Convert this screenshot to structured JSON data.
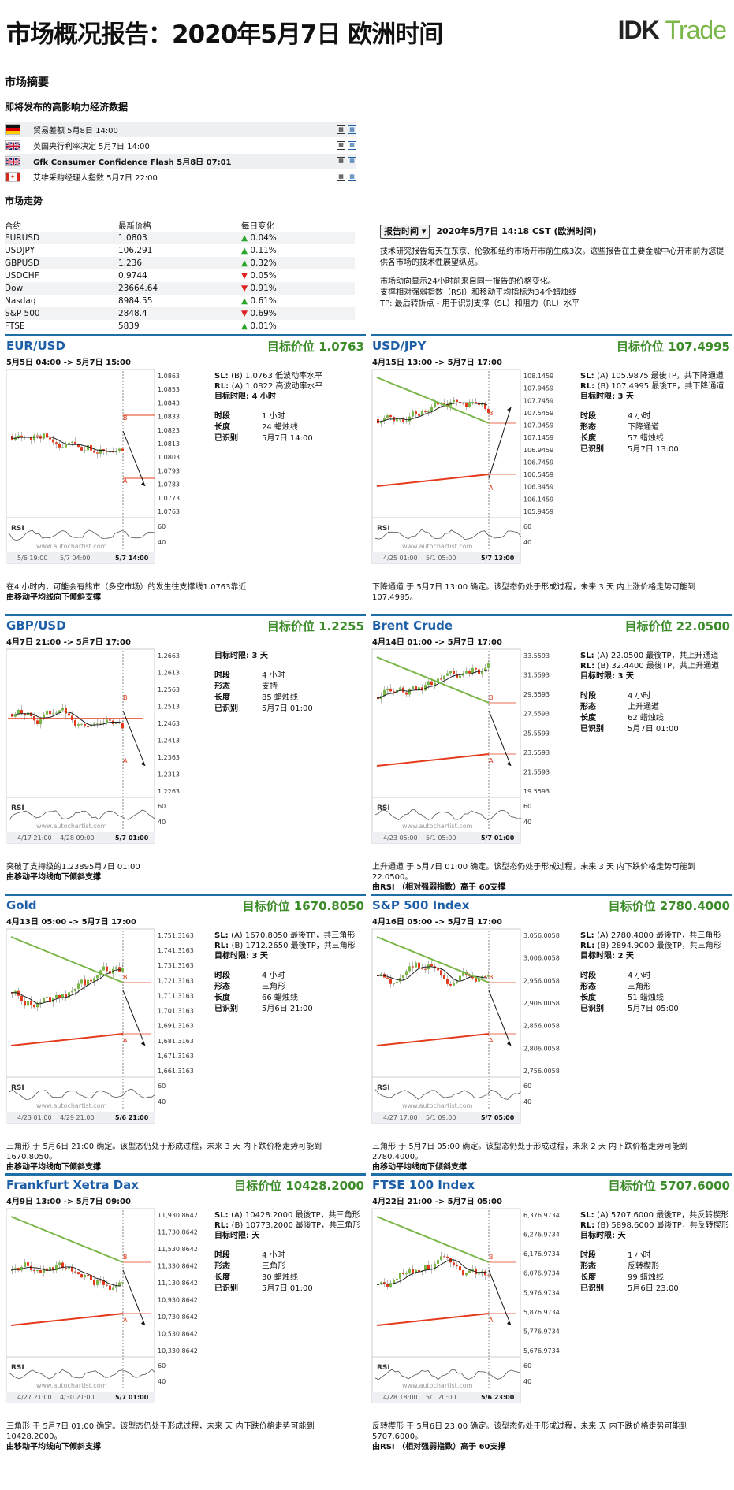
{
  "header": {
    "title": "市场概况报告：2020年5月7日 欧洲时间",
    "logo_a": "IDK",
    "logo_b": "Trade"
  },
  "summary": {
    "title": "市场摘要",
    "events_title": "即将发布的高影响力经济数据",
    "events": [
      {
        "flag": "de",
        "text": "贸易差额 5月8日 14:00"
      },
      {
        "flag": "gb",
        "text": "英国央行利率决定 5月7日 14:00"
      },
      {
        "flag": "gb",
        "text": "Gfk Consumer Confidence Flash 5月8日 07:01"
      },
      {
        "flag": "ca",
        "text": "艾维采购经理人指数 5月7日 22:00"
      }
    ]
  },
  "trend": {
    "title": "市场走势",
    "headers": [
      "合约",
      "最新价格",
      "每日变化"
    ],
    "rows": [
      {
        "name": "EURUSD",
        "price": "1.0803",
        "dir": "up",
        "chg": "0.04%"
      },
      {
        "name": "USDJPY",
        "price": "106.291",
        "dir": "up",
        "chg": "0.11%"
      },
      {
        "name": "GBPUSD",
        "price": "1.236",
        "dir": "up",
        "chg": "0.32%"
      },
      {
        "name": "USDCHF",
        "price": "0.9744",
        "dir": "dn",
        "chg": "0.05%"
      },
      {
        "name": "Dow",
        "price": "23664.64",
        "dir": "dn",
        "chg": "0.91%"
      },
      {
        "name": "Nasdaq",
        "price": "8984.55",
        "dir": "up",
        "chg": "0.61%"
      },
      {
        "name": "S&P 500",
        "price": "2848.4",
        "dir": "dn",
        "chg": "0.69%"
      },
      {
        "name": "FTSE",
        "price": "5839",
        "dir": "up",
        "chg": "0.01%"
      }
    ]
  },
  "report": {
    "button": "报告时间",
    "time": "2020年5月7日 14:18 CST (欧洲时间)",
    "p1": "技术研究报告每天在东京、伦敦和纽约市场开市前生成3次。这些报告在主要金融中心开市前为您提供各市场的技术性展望纵览。",
    "p2": "市场动向显示24小时前来自同一报告的价格变化。",
    "p3": "支撑相对强弱指数（RSI）和移动平均指标为34个蜡烛线",
    "p4": "TP: 最后转折点 - 用于识别支撑（SL）和阻力（RL）水平"
  },
  "panels": [
    {
      "name": "EUR/USD",
      "target": "目标价位 1.0763",
      "range": "5月5日 04:00 -> 5月7日 15:00",
      "sl": "(B) 1.0763 低波动率水平",
      "rl": "(A) 1.0822 高波动率水平",
      "goal": "目标时限: 4 小时",
      "rows": [
        [
          "时段",
          "1 小时"
        ],
        [
          "长度",
          "24 蜡烛线"
        ],
        [
          "已识别",
          "5月7日 14:00"
        ]
      ],
      "yticks": [
        "1.0863",
        "1.0853",
        "1.0843",
        "1.0833",
        "1.0823",
        "1.0813",
        "1.0803",
        "1.0793",
        "1.0783",
        "1.0773",
        "1.0763"
      ],
      "xticks": [
        "5/6 19:00",
        "5/7 04:00",
        "5/7 14:00"
      ],
      "desc": "在4 小时内，可能会有熊市（多空市场）的发生往支撑线1.0763靠近",
      "desc2": "由移动平均线向下倾斜支撑",
      "type": "level"
    },
    {
      "name": "USD/JPY",
      "target": "目标价位 107.4995",
      "range": "4月15日 13:00 -> 5月7日 17:00",
      "sl": "(A) 105.9875 最後TP，共下降通道",
      "rl": "(B) 107.4995 最後TP，共下降通道",
      "goal": "目标时限: 3 天",
      "rows": [
        [
          "时段",
          "4 小时"
        ],
        [
          "形态",
          "下降通道"
        ],
        [
          "长度",
          "57 蜡烛线"
        ],
        [
          "已识别",
          "5月7日 13:00"
        ]
      ],
      "yticks": [
        "108.1459",
        "107.9459",
        "107.7459",
        "107.5459",
        "107.3459",
        "107.1459",
        "106.9459",
        "106.7459",
        "106.5459",
        "106.3459",
        "106.1459",
        "105.9459"
      ],
      "xticks": [
        "4/25 01:00",
        "5/1 05:00",
        "5/7 13:00"
      ],
      "desc": "下降通道 于 5月7日 13:00 确定。该型态仍处于形成过程，未来 3 天 内上涨价格走势可能到 107.4995。",
      "desc2": "",
      "type": "channel_up"
    },
    {
      "name": "GBP/USD",
      "target": "目标价位 1.2255",
      "range": "4月7日 21:00 -> 5月7日 17:00",
      "sl": "",
      "rl": "",
      "goal": "目标时限: 3 天",
      "rows": [
        [
          "时段",
          "4 小时"
        ],
        [
          "形态",
          "支持"
        ],
        [
          "长度",
          "85 蜡烛线"
        ],
        [
          "已识别",
          "5月7日 01:00"
        ]
      ],
      "yticks": [
        "1.2663",
        "1.2613",
        "1.2563",
        "1.2513",
        "1.2463",
        "1.2413",
        "1.2363",
        "1.2313",
        "1.2263"
      ],
      "xticks": [
        "4/17 21:00",
        "4/28 09:00",
        "5/7 01:00"
      ],
      "desc": "突破了支持级的1.23895月7日 01:00",
      "desc2": "由移动平均线向下倾斜支撑",
      "type": "support"
    },
    {
      "name": "Brent Crude",
      "target": "目标价位 22.0500",
      "range": "4月14日 01:00 -> 5月7日 17:00",
      "sl": "(A) 22.0500 最後TP，共上升通道",
      "rl": "(B) 32.4400 最後TP，共上升通道",
      "goal": "目标时限: 3 天",
      "rows": [
        [
          "时段",
          "4 小时"
        ],
        [
          "形态",
          "上升通道"
        ],
        [
          "长度",
          "62 蜡烛线"
        ],
        [
          "已识别",
          "5月7日 01:00"
        ]
      ],
      "yticks": [
        "33.5593",
        "31.5593",
        "29.5593",
        "27.5593",
        "25.5593",
        "23.5593",
        "21.5593",
        "19.5593"
      ],
      "xticks": [
        "4/23 05:00",
        "5/1 05:00",
        "5/7 01:00"
      ],
      "desc": "上升通道 于 5月7日 01:00 确定。该型态仍处于形成过程，未来 3 天 内下跌价格走势可能到 22.0500。",
      "desc2": "由RSI （相对强弱指数）高于 60支撑",
      "type": "channel_dn"
    },
    {
      "name": "Gold",
      "target": "目标价位 1670.8050",
      "range": "4月13日 05:00 -> 5月7日 17:00",
      "sl": "(A) 1670.8050 最後TP，共三角形",
      "rl": "(B) 1712.2650 最後TP，共三角形",
      "goal": "目标时限: 3 天",
      "rows": [
        [
          "时段",
          "4 小时"
        ],
        [
          "形态",
          "三角形"
        ],
        [
          "长度",
          "66 蜡烛线"
        ],
        [
          "已识别",
          "5月6日 21:00"
        ]
      ],
      "yticks": [
        "1,751.3163",
        "1,741.3163",
        "1,731.3163",
        "1,721.3163",
        "1,711.3163",
        "1,701.3163",
        "1,691.3163",
        "1,681.3163",
        "1,671.3163",
        "1,661.3163"
      ],
      "xticks": [
        "4/23 01:00",
        "4/29 21:00",
        "5/6 21:00"
      ],
      "desc": "三角形 于 5月6日 21:00 确定。该型态仍处于形成过程，未来 3 天 内下跌价格走势可能到 1670.8050。",
      "desc2": "由移动平均线向下倾斜支撑",
      "type": "triangle"
    },
    {
      "name": "S&P 500 Index",
      "target": "目标价位 2780.4000",
      "range": "4月16日 05:00 -> 5月7日 17:00",
      "sl": "(A) 2780.4000 最後TP，共三角形",
      "rl": "(B) 2894.9000 最後TP，共三角形",
      "goal": "目标时限: 2 天",
      "rows": [
        [
          "时段",
          "4 小时"
        ],
        [
          "形态",
          "三角形"
        ],
        [
          "长度",
          "51 蜡烛线"
        ],
        [
          "已识别",
          "5月7日 05:00"
        ]
      ],
      "yticks": [
        "3,056.0058",
        "3,006.0058",
        "2,956.0058",
        "2,906.0058",
        "2,856.0058",
        "2,806.0058",
        "2,756.0058"
      ],
      "xticks": [
        "4/27 17:00",
        "5/1 09:00",
        "5/7 05:00"
      ],
      "desc": "三角形 于 5月7日 05:00 确定。该型态仍处于形成过程，未来 2 天 内下跌价格走势可能到 2780.4000。",
      "desc2": "由移动平均线向下倾斜支撑",
      "type": "triangle"
    },
    {
      "name": "Frankfurt Xetra Dax",
      "target": "目标价位 10428.2000",
      "range": "4月9日 13:00 -> 5月7日 09:00",
      "sl": "(A) 10428.2000 最後TP，共三角形",
      "rl": "(B) 10773.2000 最後TP，共三角形",
      "goal": "目标时限: 天",
      "rows": [
        [
          "时段",
          "4 小时"
        ],
        [
          "形态",
          "三角形"
        ],
        [
          "长度",
          "30 蜡烛线"
        ],
        [
          "已识别",
          "5月7日 01:00"
        ]
      ],
      "yticks": [
        "11,930.8642",
        "11,730.8642",
        "11,530.8642",
        "11,330.8642",
        "11,130.8642",
        "10,930.8642",
        "10,730.8642",
        "10,530.8642",
        "10,330.8642"
      ],
      "xticks": [
        "4/27 21:00",
        "4/30 21:00",
        "5/7 01:00"
      ],
      "desc": "三角形 于 5月7日 01:00 确定。该型态仍处于形成过程，未来 天 内下跌价格走势可能到 10428.2000。",
      "desc2": "由移动平均线向下倾斜支撑",
      "type": "triangle"
    },
    {
      "name": "FTSE 100 Index",
      "target": "目标价位 5707.6000",
      "range": "4月22日 21:00 -> 5月7日 05:00",
      "sl": "(A) 5707.6000 最後TP，共反转楔形",
      "rl": "(B) 5898.6000 最後TP，共反转楔形",
      "goal": "目标时限: 天",
      "rows": [
        [
          "时段",
          "1 小时"
        ],
        [
          "形态",
          "反转楔形"
        ],
        [
          "长度",
          "99 蜡烛线"
        ],
        [
          "已识别",
          "5月6日 23:00"
        ]
      ],
      "yticks": [
        "6,376.9734",
        "6,276.9734",
        "6,176.9734",
        "6,076.9734",
        "5,976.9734",
        "5,876.9734",
        "5,776.9734",
        "5,676.9734"
      ],
      "xticks": [
        "4/28 18:00",
        "5/1 20:00",
        "5/6 23:00"
      ],
      "desc": "反转楔形 于 5月6日 23:00 确定。该型态仍处于形成过程，未来 天 内下跌价格走势可能到 5707.6000。",
      "desc2": "由RSI （相对强弱指数）高于 60支撑",
      "type": "triangle"
    }
  ],
  "chart_labels": {
    "rsi": "RSI",
    "rsi60": "60",
    "rsi40": "40",
    "watermark": "www.autochartist.com",
    "sl": "SL:",
    "rl": "RL:",
    "mark_a": "A",
    "mark_b": "B"
  },
  "colors": {
    "blue": "#1e5fa8",
    "green": "#3c8c2a",
    "candle_up": "#7ab648",
    "candle_dn": "#e53b1d"
  }
}
